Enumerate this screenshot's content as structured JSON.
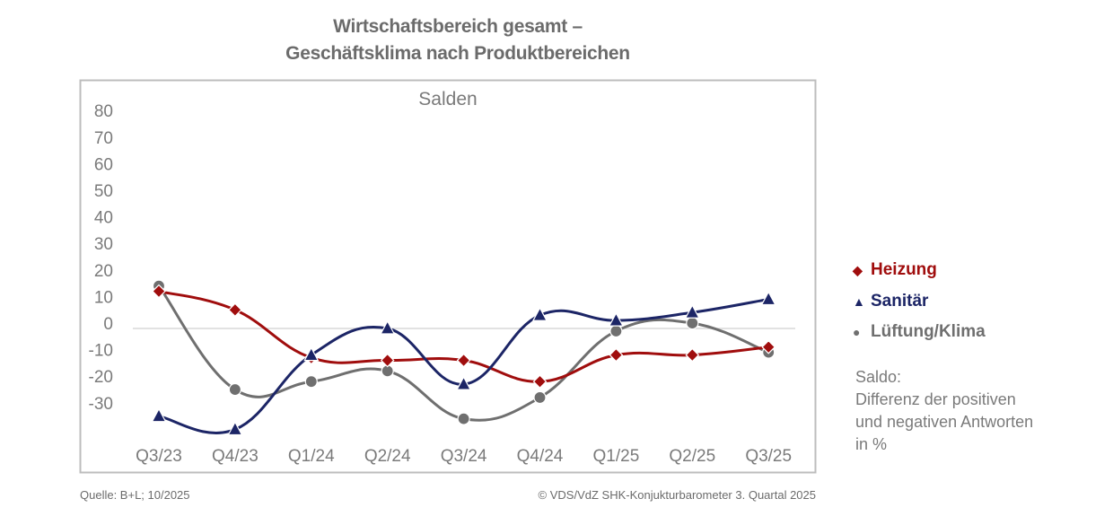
{
  "colors": {
    "heizung": "#a00d0d",
    "sanitaer": "#1c2566",
    "lueftung": "#6f6f6f",
    "axis_text": "#7a7a7a",
    "frame": "#bdbdbd",
    "zero_line": "#d0d0d0"
  },
  "legend": {
    "items": [
      {
        "label": "Heizung",
        "marker": "diamond-icon",
        "glyph": "◆",
        "color": "#a00d0d"
      },
      {
        "label": "Sanitär",
        "marker": "triangle-icon",
        "glyph": "▲",
        "color": "#1c2566"
      },
      {
        "label": "Lüftung/Klima",
        "marker": "circle-icon",
        "glyph": "●",
        "color": "#6f6f6f"
      }
    ],
    "note_lines": [
      "Saldo:",
      "Differenz der positiven",
      "und negativen Antworten",
      "in %"
    ]
  },
  "footer": {
    "source": "Quelle: B+L; 10/2025",
    "copyright": "© VDS/VdZ SHK-Konjukturbarometer 3. Quartal 2025"
  },
  "chart_data": {
    "type": "line",
    "title": "Wirtschaftsbereich gesamt –",
    "subtitle": "Geschäftsklima nach Produktbereichen",
    "inner_title": "Salden",
    "xlabel": "",
    "ylabel": "",
    "categories": [
      "Q3/23",
      "Q4/23",
      "Q1/24",
      "Q2/24",
      "Q3/24",
      "Q4/24",
      "Q1/25",
      "Q2/25",
      "Q3/25"
    ],
    "y_ticks": [
      80,
      70,
      60,
      50,
      40,
      30,
      20,
      10,
      0,
      -10,
      -20,
      -30
    ],
    "ylim": [
      -45,
      82
    ],
    "grid": "zero line only",
    "legend_position": "right",
    "series": [
      {
        "name": "Heizung",
        "marker": "diamond",
        "color": "#a00d0d",
        "values": [
          14,
          7,
          -11,
          -12,
          -12,
          -20,
          -10,
          -10,
          -7
        ]
      },
      {
        "name": "Sanitär",
        "marker": "triangle",
        "color": "#1c2566",
        "values": [
          -33,
          -38,
          -10,
          0,
          -21,
          5,
          3,
          6,
          11
        ]
      },
      {
        "name": "Lüftung/Klima",
        "marker": "circle",
        "color": "#6f6f6f",
        "values": [
          16,
          -23,
          -20,
          -16,
          -34,
          -26,
          -1,
          2,
          -9
        ]
      }
    ]
  }
}
